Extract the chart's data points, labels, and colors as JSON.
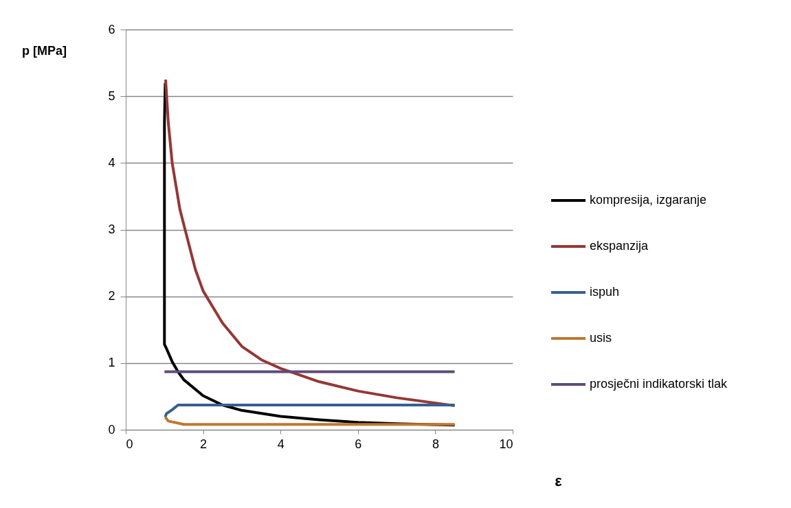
{
  "chart_data": {
    "type": "line",
    "xlabel": "ε",
    "ylabel": "p [MPa]",
    "xlim": [
      0,
      10
    ],
    "ylim": [
      0,
      6
    ],
    "xticks": [
      0,
      2,
      4,
      6,
      8,
      10
    ],
    "yticks": [
      0,
      1,
      2,
      3,
      4,
      5,
      6
    ],
    "grid": "y",
    "legend": "right",
    "marker": "none",
    "line_style": "solid",
    "series": [
      {
        "name": "kompresija, izgaranje",
        "color": "#000000",
        "x": [
          8.5,
          7,
          6,
          5,
          4,
          3,
          2.5,
          2,
          1.5,
          1.35,
          1.2,
          1.05,
          1.0,
          1.0,
          1.02
        ],
        "values": [
          0.07,
          0.09,
          0.11,
          0.15,
          0.2,
          0.29,
          0.37,
          0.51,
          0.75,
          0.87,
          1.02,
          1.22,
          1.28,
          4.6,
          5.2
        ]
      },
      {
        "name": "ekspanzija",
        "color": "#953735",
        "x": [
          1.03,
          1.1,
          1.2,
          1.4,
          1.6,
          1.8,
          2,
          2.5,
          3,
          3.5,
          4,
          5,
          6,
          7,
          8.5
        ],
        "values": [
          5.25,
          4.6,
          4.0,
          3.3,
          2.85,
          2.4,
          2.08,
          1.6,
          1.25,
          1.05,
          0.92,
          0.72,
          0.58,
          0.48,
          0.36
        ]
      },
      {
        "name": "ispuh",
        "color": "#376092",
        "x": [
          1.02,
          1.05,
          1.2,
          1.35,
          8.5
        ],
        "values": [
          0.19,
          0.24,
          0.3,
          0.37,
          0.37
        ]
      },
      {
        "name": "usis",
        "color": "#c0772f",
        "x": [
          1.02,
          1.1,
          1.5,
          8.5
        ],
        "values": [
          0.19,
          0.13,
          0.08,
          0.08
        ]
      },
      {
        "name": "prosječni indikatorski tlak",
        "color": "#604a7b",
        "x": [
          1.0,
          8.5
        ],
        "values": [
          0.87,
          0.87
        ]
      }
    ]
  }
}
